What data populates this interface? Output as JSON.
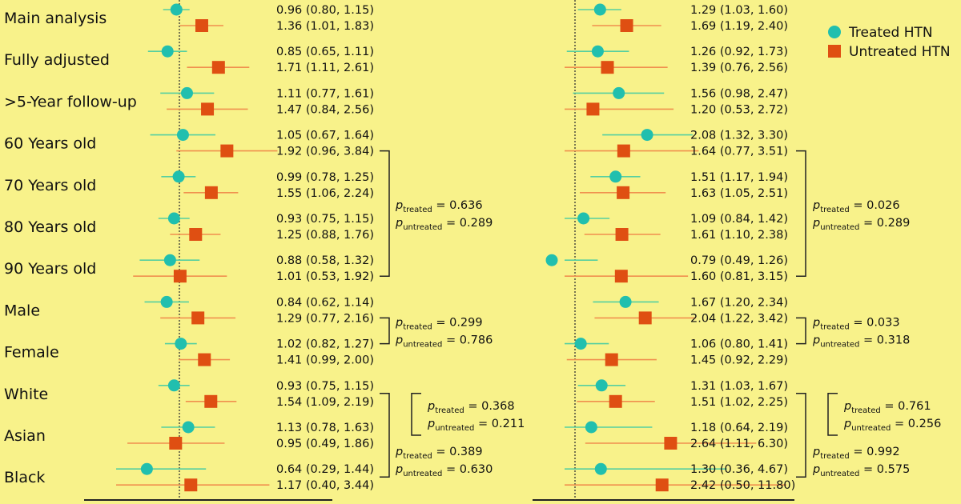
{
  "colors": {
    "background": "#f8f28a",
    "treated": "#21bfae",
    "untreated": "#df4f12",
    "treated_ci": "#55cfa0",
    "untreated_ci": "#f0904e",
    "text": "#111111"
  },
  "chart_data": {
    "type": "forest",
    "categories": [
      "Main analysis",
      "Fully adjusted",
      ">5-Year follow-up",
      "60 Years old",
      "70 Years old",
      "80 Years old",
      "90 Years old",
      "Male",
      "Female",
      "White",
      "Asian",
      "Black"
    ],
    "legend": {
      "treated_label": "Treated HTN",
      "untreated_label": "Untreated HTN",
      "position": "top-right"
    },
    "reference_line": 1,
    "panels": [
      {
        "id": "left",
        "xlim": [
          0.7,
          1.75
        ],
        "treated": [
          {
            "est": 0.96,
            "lo": 0.8,
            "hi": 1.15,
            "label": "0.96 (0.80, 1.15)"
          },
          {
            "est": 0.85,
            "lo": 0.65,
            "hi": 1.11,
            "label": "0.85 (0.65, 1.11)"
          },
          {
            "est": 1.11,
            "lo": 0.77,
            "hi": 1.61,
            "label": "1.11 (0.77, 1.61)"
          },
          {
            "est": 1.05,
            "lo": 0.67,
            "hi": 1.64,
            "label": "1.05 (0.67, 1.64)"
          },
          {
            "est": 0.99,
            "lo": 0.78,
            "hi": 1.25,
            "label": "0.99 (0.78, 1.25)"
          },
          {
            "est": 0.93,
            "lo": 0.75,
            "hi": 1.15,
            "label": "0.93 (0.75, 1.15)"
          },
          {
            "est": 0.88,
            "lo": 0.58,
            "hi": 1.32,
            "label": "0.88 (0.58, 1.32)"
          },
          {
            "est": 0.84,
            "lo": 0.62,
            "hi": 1.14,
            "label": "0.84 (0.62, 1.14)"
          },
          {
            "est": 1.02,
            "lo": 0.82,
            "hi": 1.27,
            "label": "1.02 (0.82, 1.27)"
          },
          {
            "est": 0.93,
            "lo": 0.75,
            "hi": 1.15,
            "label": "0.93 (0.75, 1.15)"
          },
          {
            "est": 1.13,
            "lo": 0.78,
            "hi": 1.63,
            "label": "1.13 (0.78, 1.63)"
          },
          {
            "est": 0.64,
            "lo": 0.29,
            "hi": 1.44,
            "label": "0.64 (0.29, 1.44)"
          }
        ],
        "untreated": [
          {
            "est": 1.36,
            "lo": 1.01,
            "hi": 1.83,
            "label": "1.36 (1.01, 1.83)"
          },
          {
            "est": 1.71,
            "lo": 1.11,
            "hi": 2.61,
            "label": "1.71 (1.11, 2.61)"
          },
          {
            "est": 1.47,
            "lo": 0.84,
            "hi": 2.56,
            "label": "1.47 (0.84, 2.56)"
          },
          {
            "est": 1.92,
            "lo": 0.96,
            "hi": 3.84,
            "label": "1.92 (0.96, 3.84)"
          },
          {
            "est": 1.55,
            "lo": 1.06,
            "hi": 2.24,
            "label": "1.55 (1.06, 2.24)"
          },
          {
            "est": 1.25,
            "lo": 0.88,
            "hi": 1.76,
            "label": "1.25 (0.88, 1.76)"
          },
          {
            "est": 1.01,
            "lo": 0.53,
            "hi": 1.92,
            "label": "1.01 (0.53, 1.92)"
          },
          {
            "est": 1.29,
            "lo": 0.77,
            "hi": 2.16,
            "label": "1.29 (0.77, 2.16)"
          },
          {
            "est": 1.41,
            "lo": 0.99,
            "hi": 2.0,
            "label": "1.41 (0.99, 2.00)"
          },
          {
            "est": 1.54,
            "lo": 1.09,
            "hi": 2.19,
            "label": "1.54 (1.09, 2.19)"
          },
          {
            "est": 0.95,
            "lo": 0.49,
            "hi": 1.86,
            "label": "0.95 (0.49, 1.86)"
          },
          {
            "est": 1.17,
            "lo": 0.4,
            "hi": 3.44,
            "label": "1.17 (0.40, 3.44)"
          }
        ],
        "pvalues": [
          {
            "group": "age",
            "p_treated": "0.636",
            "p_untreated": "0.289"
          },
          {
            "group": "sex",
            "p_treated": "0.299",
            "p_untreated": "0.786"
          },
          {
            "group": "white-asian",
            "p_treated": "0.368",
            "p_untreated": "0.211"
          },
          {
            "group": "white-black",
            "p_treated": "0.389",
            "p_untreated": "0.630"
          }
        ]
      },
      {
        "id": "right",
        "xlim": [
          0.7,
          1.75
        ],
        "treated": [
          {
            "est": 1.29,
            "lo": 1.03,
            "hi": 1.6,
            "label": "1.29 (1.03, 1.60)"
          },
          {
            "est": 1.26,
            "lo": 0.92,
            "hi": 1.73,
            "label": "1.26 (0.92, 1.73)"
          },
          {
            "est": 1.56,
            "lo": 0.98,
            "hi": 2.47,
            "label": "1.56 (0.98, 2.47)"
          },
          {
            "est": 2.08,
            "lo": 1.32,
            "hi": 3.3,
            "label": "2.08 (1.32, 3.30)"
          },
          {
            "est": 1.51,
            "lo": 1.17,
            "hi": 1.94,
            "label": "1.51 (1.17, 1.94)"
          },
          {
            "est": 1.09,
            "lo": 0.84,
            "hi": 1.42,
            "label": "1.09 (0.84, 1.42)"
          },
          {
            "est": 0.79,
            "lo": 0.49,
            "hi": 1.26,
            "label": "0.79 (0.49, 1.26)"
          },
          {
            "est": 1.67,
            "lo": 1.2,
            "hi": 2.34,
            "label": "1.67 (1.20, 2.34)"
          },
          {
            "est": 1.06,
            "lo": 0.8,
            "hi": 1.41,
            "label": "1.06 (0.80, 1.41)"
          },
          {
            "est": 1.31,
            "lo": 1.03,
            "hi": 1.67,
            "label": "1.31 (1.03, 1.67)"
          },
          {
            "est": 1.18,
            "lo": 0.64,
            "hi": 2.19,
            "label": "1.18 (0.64, 2.19)"
          },
          {
            "est": 1.3,
            "lo": 0.36,
            "hi": 4.67,
            "label": "1.30 (0.36, 4.67)"
          }
        ],
        "untreated": [
          {
            "est": 1.69,
            "lo": 1.19,
            "hi": 2.4,
            "label": "1.69 (1.19, 2.40)"
          },
          {
            "est": 1.39,
            "lo": 0.76,
            "hi": 2.56,
            "label": "1.39 (0.76, 2.56)"
          },
          {
            "est": 1.2,
            "lo": 0.53,
            "hi": 2.72,
            "label": "1.20 (0.53, 2.72)"
          },
          {
            "est": 1.64,
            "lo": 0.77,
            "hi": 3.51,
            "label": "1.64 (0.77, 3.51)"
          },
          {
            "est": 1.63,
            "lo": 1.05,
            "hi": 2.51,
            "label": "1.63 (1.05, 2.51)"
          },
          {
            "est": 1.61,
            "lo": 1.1,
            "hi": 2.38,
            "label": "1.61 (1.10, 2.38)"
          },
          {
            "est": 1.6,
            "lo": 0.81,
            "hi": 3.15,
            "label": "1.60 (0.81, 3.15)"
          },
          {
            "est": 2.04,
            "lo": 1.22,
            "hi": 3.42,
            "label": "2.04 (1.22, 3.42)"
          },
          {
            "est": 1.45,
            "lo": 0.92,
            "hi": 2.29,
            "label": "1.45 (0.92, 2.29)"
          },
          {
            "est": 1.51,
            "lo": 1.02,
            "hi": 2.25,
            "label": "1.51 (1.02, 2.25)"
          },
          {
            "est": 2.64,
            "lo": 1.11,
            "hi": 6.3,
            "label": "2.64 (1.11, 6.30)"
          },
          {
            "est": 2.42,
            "lo": 0.5,
            "hi": 11.8,
            "label": "2.42 (0.50, 11.80)"
          }
        ],
        "pvalues": [
          {
            "group": "age",
            "p_treated": "0.026",
            "p_untreated": "0.289"
          },
          {
            "group": "sex",
            "p_treated": "0.033",
            "p_untreated": "0.318"
          },
          {
            "group": "white-asian",
            "p_treated": "0.761",
            "p_untreated": "0.256"
          },
          {
            "group": "white-black",
            "p_treated": "0.992",
            "p_untreated": "0.575"
          }
        ]
      }
    ]
  }
}
